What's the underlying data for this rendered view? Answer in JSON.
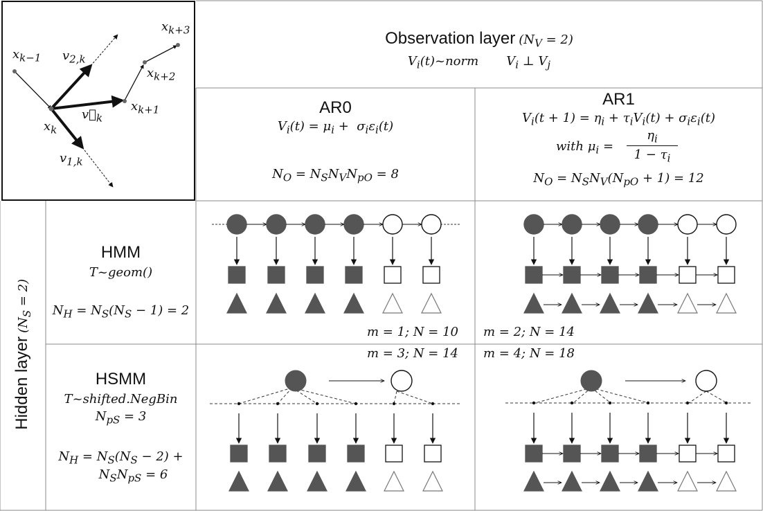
{
  "vector_panel": {
    "x_k_minus_1": "x_{k−1}",
    "x_k": "x_k",
    "x_k_plus_1": "x_{k+1}",
    "x_k_plus_2": "x_{k+2}",
    "x_k_plus_3": "x_{k+3}",
    "v_2k": "v_{2,k}",
    "v_1k": "v_{1,k}",
    "v_vec_k": "v⃗_k"
  },
  "observation_layer": {
    "title": "Observation layer",
    "title_math": "(N_V = 2)",
    "subtitle": "V_i(t)~norm        V_i ⊥ V_j"
  },
  "ar0": {
    "title": "AR0",
    "equation": "V_i(t) = μ_i +  σ_i ε_i(t)",
    "count": "N_O = N_S N_V N_pO = 8"
  },
  "ar1": {
    "title": "AR1",
    "equation": "V_i(t + 1) = η_i + τ_i V_i(t) + σ_i ε_i(t)",
    "with_mu": "with μ_i =",
    "frac_num": "η_i",
    "frac_den": "1 − τ_i",
    "count": "N_O = N_S N_V (N_pO + 1) = 12"
  },
  "hidden_layer": {
    "title": "Hidden layer",
    "title_math": "(N_S = 2)"
  },
  "hmm": {
    "title": "HMM",
    "distribution": "T~geom()",
    "count": "N_H = N_S(N_S − 1) = 2"
  },
  "hsmm": {
    "title": "HSMM",
    "distribution": "T~shifted.NegBin",
    "param": "N_pS = 3",
    "count_line1": "N_H = N_S(N_S − 2) +",
    "count_line2": "N_S N_pS = 6"
  },
  "cells": {
    "hmm_ar0": "m = 1; N = 10",
    "hmm_ar1": "m = 2; N = 14",
    "hsmm_ar0": "m = 3; N = 14",
    "hsmm_ar1": "m = 4; N = 18"
  },
  "colors": {
    "filled": "#555555",
    "line": "#111111",
    "border": "#888888"
  },
  "diagram": {
    "hidden_states": [
      "filled",
      "filled",
      "filled",
      "filled",
      "open",
      "open"
    ]
  }
}
